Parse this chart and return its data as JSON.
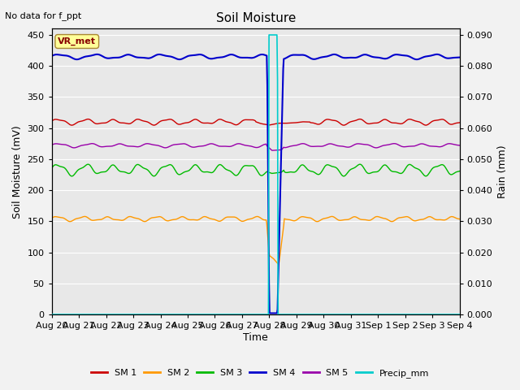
{
  "title": "Soil Moisture",
  "top_left_text": "No data for f_ppt",
  "ylabel_left": "Soil Moisture (mV)",
  "ylabel_right": "Rain (mm)",
  "xlabel": "Time",
  "n_days": 15,
  "ylim_left": [
    0,
    460
  ],
  "ylim_right": [
    0,
    0.092
  ],
  "x_tick_labels": [
    "Aug 20",
    "Aug 21",
    "Aug 22",
    "Aug 23",
    "Aug 24",
    "Aug 25",
    "Aug 26",
    "Aug 27",
    "Aug 28",
    "Aug 29",
    "Aug 30",
    "Aug 31",
    "Sep 1",
    "Sep 2",
    "Sep 3",
    "Sep 4"
  ],
  "sm1_color": "#cc0000",
  "sm2_color": "#ff9900",
  "sm3_color": "#00bb00",
  "sm4_color": "#0000cc",
  "sm5_color": "#9900aa",
  "precip_color": "#00cccc",
  "plot_bg_color": "#e8e8e8",
  "fig_bg_color": "#f2f2f2",
  "grid_color": "#ffffff",
  "vr_met_bg": "#ffff99",
  "vr_met_border": "#aa8833",
  "sm1_base": 310,
  "sm2_base": 154,
  "sm3_base": 233,
  "sm4_base": 415,
  "sm5_base": 272,
  "right_yticks": [
    0.0,
    0.01,
    0.02,
    0.03,
    0.04,
    0.05,
    0.06,
    0.07,
    0.08,
    0.09
  ]
}
